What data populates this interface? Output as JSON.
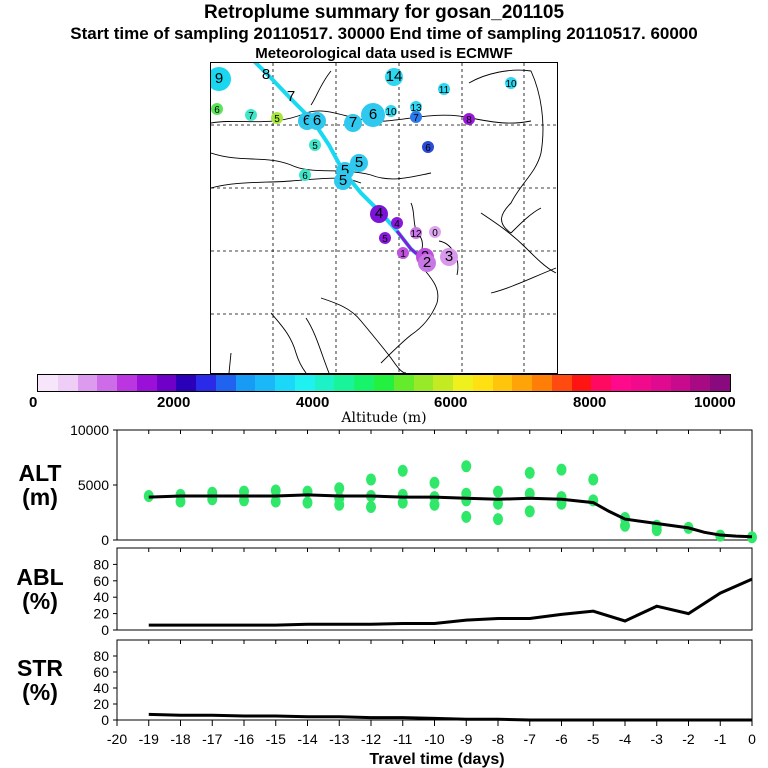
{
  "header": {
    "title": "Retroplume summary for gosan_201105",
    "line2": "Start time of sampling 20110517. 30000     End time of sampling 20110517. 60000",
    "line3": "Meteorological data used is ECMWF"
  },
  "colorbar": {
    "ticks": [
      "0",
      "2000",
      "4000",
      "6000",
      "8000",
      "10000"
    ],
    "label": "Altitude (m)",
    "colors": [
      "#f7e6fb",
      "#eecdf7",
      "#dd9bf0",
      "#cd6be8",
      "#bb35e0",
      "#9a10d8",
      "#6f00c8",
      "#2a00b8",
      "#2a2ae8",
      "#1f63f0",
      "#179bf5",
      "#1ab8f8",
      "#1bd7f8",
      "#1ff0f0",
      "#1cf2c6",
      "#19f39a",
      "#18f36c",
      "#24f040",
      "#64ec2c",
      "#98ea28",
      "#c4ea24",
      "#f0f01e",
      "#ffe012",
      "#ffc40c",
      "#ffa408",
      "#ff7e08",
      "#ff4a10",
      "#ff1414",
      "#ff0a60",
      "#ff0a8c",
      "#f20a8c",
      "#e00a90",
      "#c80a8c",
      "#a80a84",
      "#880a7c"
    ]
  },
  "map": {
    "markers": [
      {
        "label": "9",
        "fill": "#1ad6ee",
        "size": "L"
      },
      {
        "label": "8",
        "fill": "none",
        "size": "T"
      },
      {
        "label": "7",
        "fill": "none",
        "size": "T"
      },
      {
        "label": "6",
        "fill": "#5be35b",
        "size": "S"
      },
      {
        "label": "7",
        "fill": "#3fe7c8",
        "size": "S"
      },
      {
        "label": "5",
        "fill": "#a9e63a",
        "size": "S"
      },
      {
        "label": "6",
        "fill": "#2fc9ef",
        "size": "M"
      },
      {
        "label": "6",
        "fill": "#2fc9ef",
        "size": "M"
      },
      {
        "label": "7",
        "fill": "#2fc9ef",
        "size": "M"
      },
      {
        "label": "6",
        "fill": "#2fc9ef",
        "size": "L"
      },
      {
        "label": "10",
        "fill": "#2fd6ef",
        "size": "S"
      },
      {
        "label": "14",
        "fill": "#2fd6ef",
        "size": "M"
      },
      {
        "label": "13",
        "fill": "#2fd6ef",
        "size": "S"
      },
      {
        "label": "7",
        "fill": "#2a7aee",
        "size": "S"
      },
      {
        "label": "11",
        "fill": "#2fd6ef",
        "size": "S"
      },
      {
        "label": "10",
        "fill": "#2fd6ef",
        "size": "S"
      },
      {
        "label": "8",
        "fill": "#9a18d8",
        "size": "S"
      },
      {
        "label": "5",
        "fill": "#3fe7c8",
        "size": "S"
      },
      {
        "label": "6",
        "fill": "#2a4ad8",
        "size": "S"
      },
      {
        "label": "6",
        "fill": "#3fe7c8",
        "size": "S"
      },
      {
        "label": "5",
        "fill": "#2fc9ef",
        "size": "M"
      },
      {
        "label": "5",
        "fill": "#2fc9ef",
        "size": "M"
      },
      {
        "label": "5",
        "fill": "#2fc9ef",
        "size": "M"
      },
      {
        "label": "4",
        "fill": "#7a14d6",
        "size": "M"
      },
      {
        "label": "4",
        "fill": "#8a18da",
        "size": "S"
      },
      {
        "label": "12",
        "fill": "#c878e4",
        "size": "S"
      },
      {
        "label": "0",
        "fill": "#dca6ef",
        "size": "S"
      },
      {
        "label": "5",
        "fill": "#8a18da",
        "size": "S"
      },
      {
        "label": "1",
        "fill": "#c050de",
        "size": "S"
      },
      {
        "label": "2",
        "fill": "#c050de",
        "size": "M"
      },
      {
        "label": "2",
        "fill": "#c878e4",
        "size": "M"
      },
      {
        "label": "3",
        "fill": "#d898ec",
        "size": "M"
      }
    ]
  },
  "chart_data": [
    {
      "type": "line",
      "panel": "altitude",
      "ylabel": "ALT\n(m)",
      "ylabel_lines": [
        "ALT",
        "(m)"
      ],
      "ylim": [
        0,
        10000
      ],
      "yticks": [
        "10000",
        "5000",
        "0"
      ],
      "x": [
        -19,
        -18,
        -17,
        -16,
        -15,
        -14,
        -13,
        -12,
        -11,
        -10,
        -9,
        -8,
        -7,
        -6,
        -5,
        -4.5,
        -4,
        -3,
        -2,
        -1.5,
        -1,
        -0.5,
        0
      ],
      "series": [
        {
          "name": "median altitude",
          "values": [
            3900,
            4000,
            4000,
            4000,
            4000,
            4100,
            4000,
            4000,
            3900,
            3900,
            3800,
            3700,
            3800,
            3700,
            3400,
            2600,
            1900,
            1500,
            1100,
            700,
            450,
            350,
            300
          ]
        }
      ],
      "scatter_points": [
        {
          "x": -19,
          "y": 4000
        },
        {
          "x": -18,
          "y": 4100
        },
        {
          "x": -18,
          "y": 3500
        },
        {
          "x": -17,
          "y": 4300
        },
        {
          "x": -17,
          "y": 3700
        },
        {
          "x": -16,
          "y": 4400
        },
        {
          "x": -16,
          "y": 3600
        },
        {
          "x": -15,
          "y": 4500
        },
        {
          "x": -15,
          "y": 3500
        },
        {
          "x": -14,
          "y": 4400
        },
        {
          "x": -14,
          "y": 3400
        },
        {
          "x": -13,
          "y": 4700
        },
        {
          "x": -13,
          "y": 3800
        },
        {
          "x": -13,
          "y": 3200
        },
        {
          "x": -12,
          "y": 5500
        },
        {
          "x": -12,
          "y": 4000
        },
        {
          "x": -12,
          "y": 3000
        },
        {
          "x": -11,
          "y": 6300
        },
        {
          "x": -11,
          "y": 4100
        },
        {
          "x": -11,
          "y": 3400
        },
        {
          "x": -10,
          "y": 5200
        },
        {
          "x": -10,
          "y": 3900
        },
        {
          "x": -10,
          "y": 3200
        },
        {
          "x": -9,
          "y": 6700
        },
        {
          "x": -9,
          "y": 4200
        },
        {
          "x": -9,
          "y": 3600
        },
        {
          "x": -9,
          "y": 2100
        },
        {
          "x": -8,
          "y": 4400
        },
        {
          "x": -8,
          "y": 3300
        },
        {
          "x": -8,
          "y": 1900
        },
        {
          "x": -7,
          "y": 6100
        },
        {
          "x": -7,
          "y": 4200
        },
        {
          "x": -7,
          "y": 2600
        },
        {
          "x": -6,
          "y": 6400
        },
        {
          "x": -6,
          "y": 3900
        },
        {
          "x": -6,
          "y": 3300
        },
        {
          "x": -5,
          "y": 5500
        },
        {
          "x": -5,
          "y": 3600
        },
        {
          "x": -4,
          "y": 2000
        },
        {
          "x": -4,
          "y": 1300
        },
        {
          "x": -3,
          "y": 900
        },
        {
          "x": -3,
          "y": 1300
        },
        {
          "x": -2,
          "y": 1100
        },
        {
          "x": -1,
          "y": 400
        },
        {
          "x": 0,
          "y": 250
        }
      ]
    },
    {
      "type": "line",
      "panel": "abl",
      "ylabel": "ABL\n(%)",
      "ylabel_lines": [
        "ABL",
        "(%)"
      ],
      "ylim": [
        0,
        100
      ],
      "yticks": [
        "80",
        "60",
        "40",
        "20",
        "0"
      ],
      "x": [
        -19,
        -18,
        -17,
        -16,
        -15,
        -14,
        -13,
        -12,
        -11,
        -10,
        -9,
        -8,
        -7,
        -6,
        -5,
        -4,
        -3,
        -2,
        -1,
        0
      ],
      "series": [
        {
          "name": "ABL fraction",
          "values": [
            6,
            6,
            6,
            6,
            6,
            7,
            7,
            7,
            8,
            8,
            12,
            14,
            14,
            19,
            23,
            11,
            29,
            20,
            45,
            62
          ]
        }
      ]
    },
    {
      "type": "line",
      "panel": "stratosphere",
      "ylabel": "STR\n(%)",
      "ylabel_lines": [
        "STR",
        "(%)"
      ],
      "ylim": [
        0,
        100
      ],
      "yticks": [
        "80",
        "60",
        "40",
        "20",
        "0"
      ],
      "x": [
        -19,
        -18,
        -17,
        -16,
        -15,
        -14,
        -13,
        -12,
        -11,
        -10,
        -9,
        -8,
        -7,
        -6,
        -5,
        -4,
        -3,
        -2,
        -1,
        0
      ],
      "series": [
        {
          "name": "stratosphere fraction",
          "values": [
            7,
            6,
            6,
            5,
            5,
            4,
            4,
            3,
            3,
            2,
            1,
            1,
            0,
            0,
            0,
            0,
            0,
            0,
            0,
            0
          ]
        }
      ]
    }
  ],
  "xaxis": {
    "ticks": [
      "-20",
      "-19",
      "-18",
      "-17",
      "-16",
      "-15",
      "-14",
      "-13",
      "-12",
      "-11",
      "-10",
      "-9",
      "-8",
      "-7",
      "-6",
      "-5",
      "-4",
      "-3",
      "-2",
      "-1",
      "0"
    ],
    "label": "Travel time (days)"
  }
}
